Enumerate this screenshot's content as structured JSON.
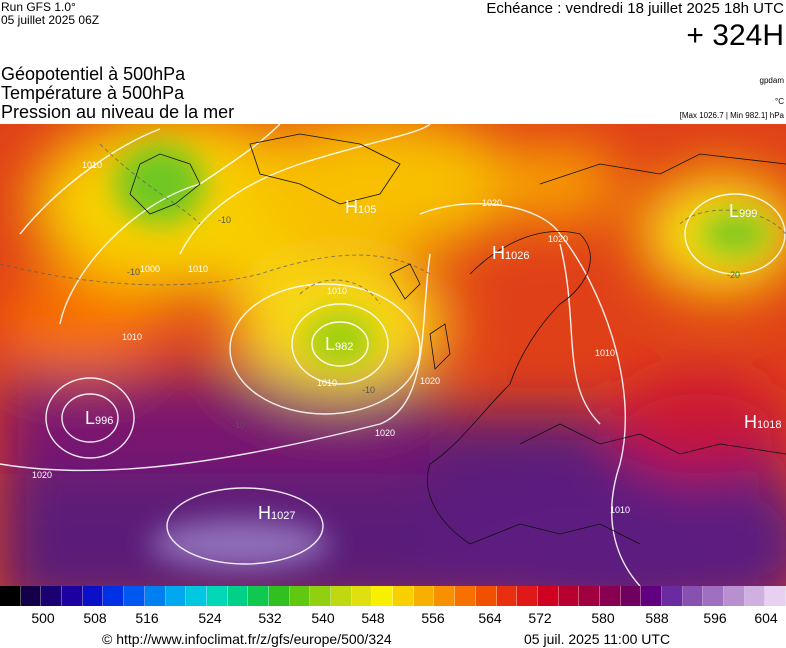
{
  "header": {
    "run": "Run GFS 1.0°",
    "run_date": "05 juillet 2025 06Z",
    "echeance": "Echéance : vendredi 18 juillet 2025 18h UTC",
    "lead": "+ 324H"
  },
  "titles": {
    "line1": "Géopotentiel à 500hPa",
    "line2": "Température à 500hPa",
    "line3": "Pression au niveau de la mer"
  },
  "units": {
    "geopot": "gpdam",
    "temp": "°C",
    "pressure": "[Max 1026.7 | Min 982.1] hPa"
  },
  "pressure_centers": [
    {
      "type": "H",
      "value": "105"
    },
    {
      "type": "H",
      "value": "1026"
    },
    {
      "type": "L",
      "value": "999"
    },
    {
      "type": "L",
      "value": "982"
    },
    {
      "type": "L",
      "value": "996"
    },
    {
      "type": "H",
      "value": "1027"
    },
    {
      "type": "H",
      "value": "1018"
    }
  ],
  "isobar_labels": [
    "1010",
    "1020",
    "1000",
    "1010",
    "1010",
    "1010",
    "1020",
    "1020",
    "1020",
    "1010",
    "1010",
    "1020",
    "1010"
  ],
  "temp_labels": [
    "-10",
    "-10",
    "-10",
    "-10",
    "-20"
  ],
  "legend": {
    "ticks": [
      "500",
      "508",
      "516",
      "524",
      "532",
      "540",
      "548",
      "556",
      "564",
      "572",
      "580",
      "588",
      "596",
      "604"
    ],
    "colors": [
      "#000000",
      "#14004a",
      "#1a0070",
      "#1c00a0",
      "#0a10c8",
      "#0030e6",
      "#0058f0",
      "#0080f0",
      "#00a8f0",
      "#00c8e0",
      "#00d8b8",
      "#00d088",
      "#10c850",
      "#30c020",
      "#60c810",
      "#90d010",
      "#c0d810",
      "#e0e010",
      "#f8f000",
      "#f8d000",
      "#f8b000",
      "#f89000",
      "#f87000",
      "#f05000",
      "#e83010",
      "#e01818",
      "#d00020",
      "#b80030",
      "#a00040",
      "#880050",
      "#700060",
      "#600080",
      "#6a2aa0",
      "#8850b0",
      "#a070c0",
      "#b890d0",
      "#d0b0e0",
      "#e8d0f0"
    ]
  },
  "footer": {
    "url": "© http://www.infoclimat.fr/z/gfs/europe/500/324",
    "timestamp": "05 juil. 2025 11:00 UTC"
  }
}
